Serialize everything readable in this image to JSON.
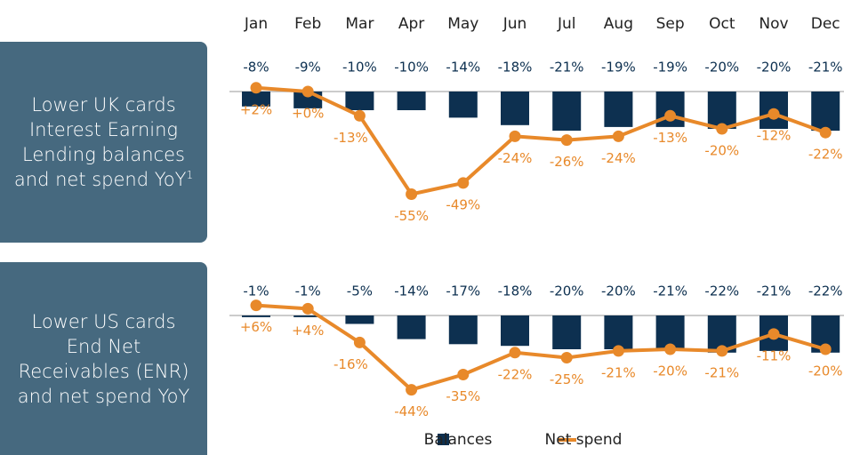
{
  "chart_data": [
    {
      "type": "bar-line",
      "title": "Lower UK cards Interest Earning Lending balances and net spend YoY",
      "title_footnote": "1",
      "categories": [
        "Jan",
        "Feb",
        "Mar",
        "Apr",
        "May",
        "Jun",
        "Jul",
        "Aug",
        "Sep",
        "Oct",
        "Nov",
        "Dec"
      ],
      "ylim": [
        -60,
        5
      ],
      "series": [
        {
          "name": "Balances",
          "color": "#0d3050",
          "values": [
            -8,
            -9,
            -10,
            -10,
            -14,
            -18,
            -21,
            -19,
            -19,
            -20,
            -20,
            -21
          ],
          "value_labels": [
            "-8%",
            "-9%",
            "-10%",
            "-10%",
            "-14%",
            "-18%",
            "-21%",
            "-19%",
            "-19%",
            "-20%",
            "-20%",
            "-21%"
          ]
        },
        {
          "name": "Net spend",
          "color": "#e8892a",
          "values": [
            2,
            0,
            -13,
            -55,
            -49,
            -24,
            -26,
            -24,
            -13,
            -20,
            -12,
            -22
          ],
          "value_labels": [
            "+2%",
            "+0%",
            "-13%",
            "-55%",
            "-49%",
            "-24%",
            "-26%",
            "-24%",
            "-13%",
            "-20%",
            "-12%",
            "-22%"
          ]
        }
      ]
    },
    {
      "type": "bar-line",
      "title": "Lower US cards End Net Receivables (ENR) and net spend YoY",
      "ylim": [
        -50,
        10
      ],
      "series": [
        {
          "color": "#0d3050",
          "values": [
            -1,
            -1,
            -5,
            -14,
            -17,
            -18,
            -20,
            -20,
            -21,
            -22,
            -21,
            -22
          ],
          "value_labels": [
            "-1%",
            "-1%",
            "-5%",
            "-14%",
            "-17%",
            "-18%",
            "-20%",
            "-20%",
            "-21%",
            "-22%",
            "-21%",
            "-22%"
          ]
        },
        {
          "color": "#e8892a",
          "values": [
            6,
            4,
            -16,
            -44,
            -35,
            -22,
            -25,
            -21,
            -20,
            -21,
            -11,
            -20
          ],
          "value_labels": [
            "+6%",
            "+4%",
            "-16%",
            "-44%",
            "-35%",
            "-22%",
            "-25%",
            "-21%",
            "-20%",
            "-21%",
            "-11%",
            "-20%"
          ]
        }
      ]
    }
  ]
}
